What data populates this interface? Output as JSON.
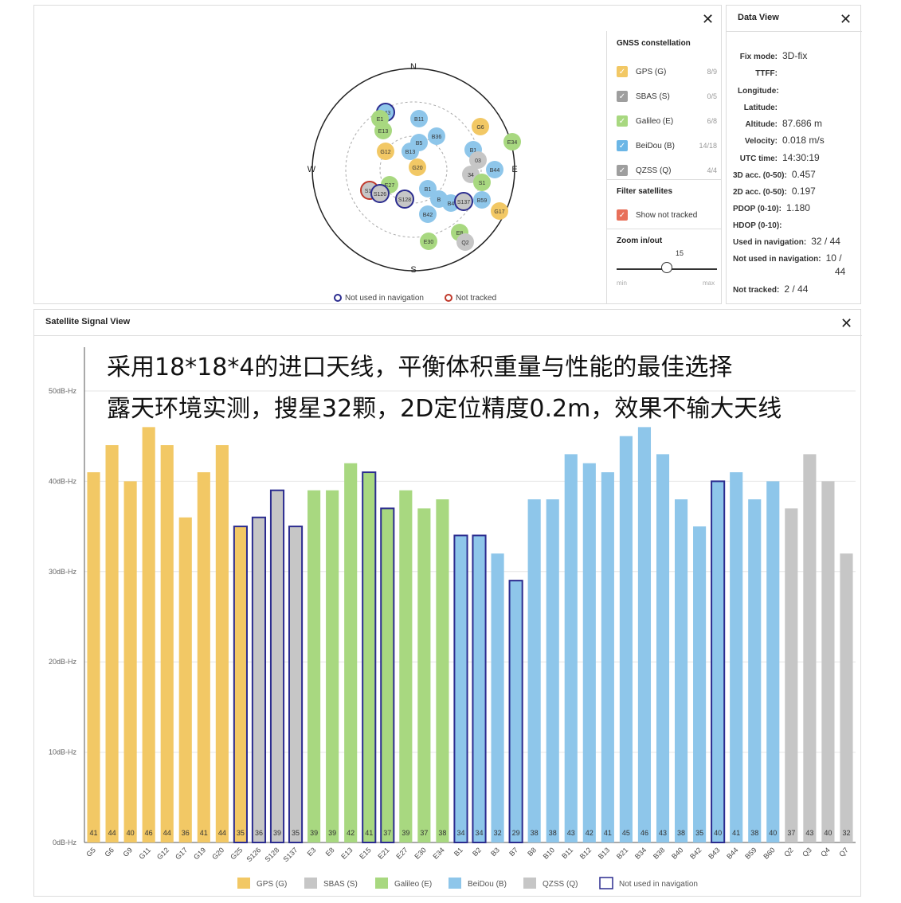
{
  "skyview": {
    "compass": {
      "n": "N",
      "s": "S",
      "e": "E",
      "w": "W"
    },
    "legend_not_used": "Not used in navigation",
    "legend_not_tracked": "Not tracked",
    "satellites": [
      {
        "id": "B43",
        "color": "#8ec6ea",
        "ring": "blue"
      },
      {
        "id": "B11",
        "color": "#8ec6ea",
        "ring": ""
      },
      {
        "id": "E1",
        "color": "#a8d880",
        "ring": ""
      },
      {
        "id": "E13",
        "color": "#a8d880",
        "ring": ""
      },
      {
        "id": "B36",
        "color": "#8ec6ea",
        "ring": ""
      },
      {
        "id": "G6",
        "color": "#f2c865",
        "ring": ""
      },
      {
        "id": "B5",
        "color": "#8ec6ea",
        "ring": ""
      },
      {
        "id": "G12",
        "color": "#f2c865",
        "ring": ""
      },
      {
        "id": "B13",
        "color": "#8ec6ea",
        "ring": ""
      },
      {
        "id": "E34",
        "color": "#a8d880",
        "ring": ""
      },
      {
        "id": "B1",
        "color": "#8ec6ea",
        "ring": ""
      },
      {
        "id": "G20",
        "color": "#f2c865",
        "ring": ""
      },
      {
        "id": "03",
        "color": "#c6c6c6",
        "ring": ""
      },
      {
        "id": "B44",
        "color": "#8ec6ea",
        "ring": ""
      },
      {
        "id": "34",
        "color": "#c6c6c6",
        "ring": ""
      },
      {
        "id": "E27",
        "color": "#a8d880",
        "ring": ""
      },
      {
        "id": "S1",
        "color": "#a8d880",
        "ring": ""
      },
      {
        "id": "S12",
        "color": "#c6c6c6",
        "ring": "red"
      },
      {
        "id": "S126",
        "color": "#c6c6c6",
        "ring": "blue"
      },
      {
        "id": "S128",
        "color": "#c6c6c6",
        "ring": "blue"
      },
      {
        "id": "B1",
        "color": "#8ec6ea",
        "ring": ""
      },
      {
        "id": "B",
        "color": "#8ec6ea",
        "ring": ""
      },
      {
        "id": "B4",
        "color": "#8ec6ea",
        "ring": ""
      },
      {
        "id": "S137",
        "color": "#c6c6c6",
        "ring": "blue"
      },
      {
        "id": "B59",
        "color": "#8ec6ea",
        "ring": ""
      },
      {
        "id": "B42",
        "color": "#8ec6ea",
        "ring": ""
      },
      {
        "id": "G17",
        "color": "#f2c865",
        "ring": ""
      },
      {
        "id": "E8",
        "color": "#a8d880",
        "ring": ""
      },
      {
        "id": "E30",
        "color": "#a8d880",
        "ring": ""
      },
      {
        "id": "Q2",
        "color": "#c6c6c6",
        "ring": ""
      }
    ]
  },
  "constellation": {
    "title": "GNSS constellation",
    "items": [
      {
        "label": "GPS (G)",
        "count": "8/9",
        "color": "#f2c865"
      },
      {
        "label": "SBAS (S)",
        "count": "0/5",
        "color": "#9e9e9e"
      },
      {
        "label": "Galileo (E)",
        "count": "6/8",
        "color": "#a8d880"
      },
      {
        "label": "BeiDou (B)",
        "count": "14/18",
        "color": "#6bb6e6"
      },
      {
        "label": "QZSS (Q)",
        "count": "4/4",
        "color": "#9e9e9e"
      }
    ],
    "filter_title": "Filter satellites",
    "filter_label": "Show not tracked",
    "filter_color": "#e8705a",
    "zoom_title": "Zoom in/out",
    "zoom_value": "15",
    "zoom_level": 0.4,
    "zoom_min": "min",
    "zoom_max": "max"
  },
  "dataview": {
    "title": "Data View",
    "rows": [
      {
        "k": "Fix mode:",
        "v": "3D-fix"
      },
      {
        "k": "TTFF:",
        "v": ""
      },
      {
        "k": "Longitude:",
        "v": ""
      },
      {
        "k": "Latitude:",
        "v": ""
      },
      {
        "k": "Altitude:",
        "v": "87.686 m"
      },
      {
        "k": "Velocity:",
        "v": "0.018 m/s"
      },
      {
        "k": "UTC time:",
        "v": "14:30:19"
      },
      {
        "k": "3D acc. (0-50):",
        "v": "0.457"
      },
      {
        "k": "2D acc. (0-50):",
        "v": "0.197"
      },
      {
        "k": "PDOP (0-10):",
        "v": "1.180"
      },
      {
        "k": "HDOP (0-10):",
        "v": ""
      },
      {
        "k": "Used in navigation:",
        "v": "32 / 44"
      },
      {
        "k": "Not used in navigation:",
        "v": "10 /"
      },
      {
        "k": "",
        "v": "44"
      },
      {
        "k": "Not tracked:",
        "v": "2 / 44"
      }
    ]
  },
  "signal": {
    "title": "Satellite Signal View",
    "overlay_line1": "采用18*18*4的进口天线，平衡体积重量与性能的最佳选择",
    "overlay_line2": "露天环境实测，搜星32颗，2D定位精度0.2m，效果不输大天线"
  },
  "chart_data": {
    "type": "bar",
    "title": "Satellite Signal View",
    "ylabel": "dB-Hz",
    "ylim": [
      0,
      55
    ],
    "yticks": [
      "0dB-Hz",
      "10dB-Hz",
      "20dB-Hz",
      "30dB-Hz",
      "40dB-Hz",
      "50dB-Hz"
    ],
    "categories": [
      "G5",
      "G6",
      "G9",
      "G11",
      "G12",
      "G17",
      "G19",
      "G20",
      "G25",
      "S126",
      "S128",
      "S137",
      "E3",
      "E8",
      "E13",
      "E15",
      "E21",
      "E27",
      "E30",
      "E34",
      "B1",
      "B2",
      "B3",
      "B7",
      "B8",
      "B10",
      "B11",
      "B12",
      "B13",
      "B21",
      "B34",
      "B38",
      "B40",
      "B42",
      "B43",
      "B44",
      "B59",
      "B60",
      "Q2",
      "Q3",
      "Q4",
      "Q7"
    ],
    "values": [
      41,
      44,
      40,
      46,
      44,
      36,
      41,
      44,
      35,
      36,
      39,
      35,
      39,
      39,
      42,
      41,
      37,
      39,
      37,
      38,
      34,
      34,
      32,
      29,
      38,
      38,
      43,
      42,
      41,
      45,
      46,
      43,
      38,
      35,
      40,
      41,
      38,
      40,
      37,
      43,
      40,
      32
    ],
    "constellation": [
      "G",
      "G",
      "G",
      "G",
      "G",
      "G",
      "G",
      "G",
      "G",
      "S",
      "S",
      "S",
      "E",
      "E",
      "E",
      "E",
      "E",
      "E",
      "E",
      "E",
      "B",
      "B",
      "B",
      "B",
      "B",
      "B",
      "B",
      "B",
      "B",
      "B",
      "B",
      "B",
      "B",
      "B",
      "B",
      "B",
      "B",
      "B",
      "Q",
      "Q",
      "Q",
      "Q"
    ],
    "not_used": [
      false,
      false,
      false,
      false,
      false,
      false,
      false,
      false,
      true,
      true,
      true,
      true,
      false,
      false,
      false,
      true,
      true,
      false,
      false,
      false,
      true,
      true,
      false,
      true,
      false,
      false,
      false,
      false,
      false,
      false,
      false,
      false,
      false,
      false,
      true,
      false,
      false,
      false,
      false,
      false,
      false,
      false
    ],
    "colors": {
      "G": "#f2c865",
      "S": "#c6c6c6",
      "E": "#a8d880",
      "B": "#8ec6ea",
      "Q": "#c6c6c6",
      "not_used": "#2b2c8f"
    },
    "legend": [
      {
        "label": "GPS (G)",
        "key": "G"
      },
      {
        "label": "SBAS (S)",
        "key": "S"
      },
      {
        "label": "Galileo (E)",
        "key": "E"
      },
      {
        "label": "BeiDou (B)",
        "key": "B"
      },
      {
        "label": "QZSS (Q)",
        "key": "Q"
      },
      {
        "label": "Not used in navigation",
        "key": "not_used"
      }
    ]
  }
}
